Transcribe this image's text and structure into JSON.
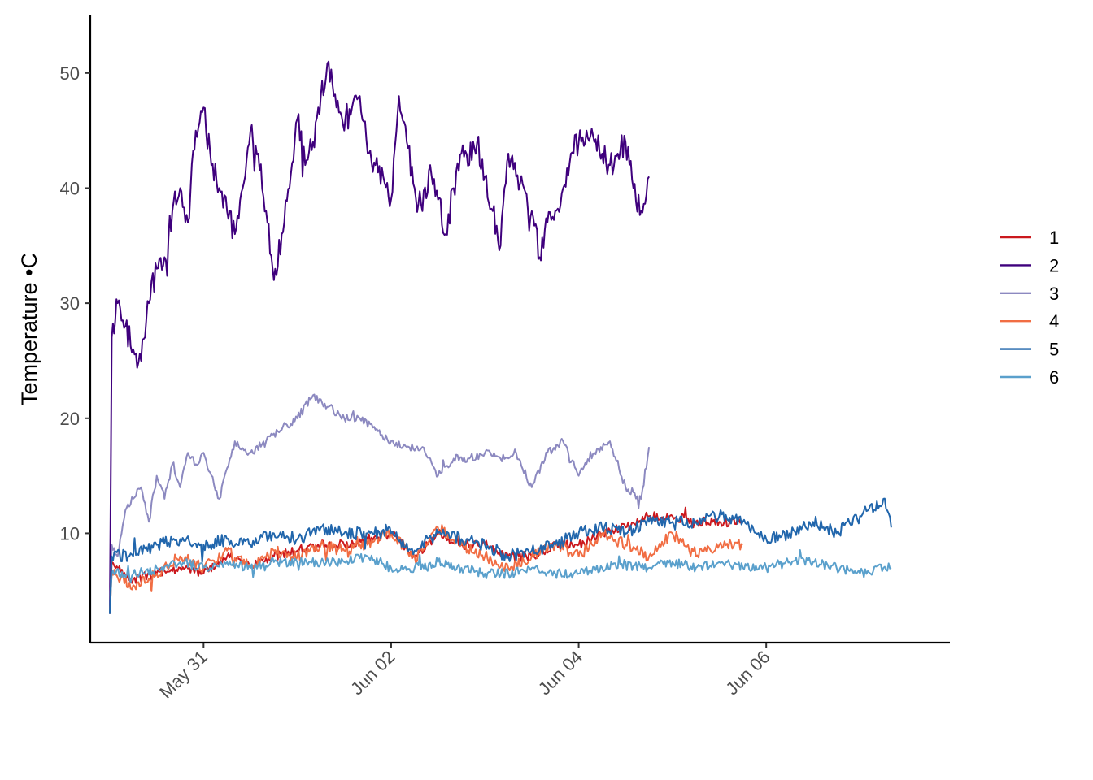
{
  "chart_data": {
    "type": "line",
    "title": "",
    "xlabel": "",
    "ylabel": "Temperature •C",
    "x_ticks": [
      {
        "label": "May 31",
        "value": "2023-05-31"
      },
      {
        "label": "Jun 02",
        "value": "2023-06-02"
      },
      {
        "label": "Jun 04",
        "value": "2023-06-04"
      },
      {
        "label": "Jun 06",
        "value": "2023-06-06"
      }
    ],
    "y_ticks": [
      10,
      20,
      30,
      40,
      50
    ],
    "xlim": [
      "2023-05-29T19:00",
      "2023-06-07T23:00"
    ],
    "ylim": [
      0.5,
      55
    ],
    "grid": false,
    "legend_position": "right",
    "series": [
      {
        "name": "1",
        "color": "#cb181d",
        "x": [
          "2023-05-30T00:00",
          "2023-05-30T00:30",
          "2023-05-30T06:00",
          "2023-05-30T12:00",
          "2023-05-30T18:00",
          "2023-05-31T00:00",
          "2023-05-31T06:00",
          "2023-05-31T12:00",
          "2023-05-31T18:00",
          "2023-06-01T00:00",
          "2023-06-01T06:00",
          "2023-06-01T12:00",
          "2023-06-01T18:00",
          "2023-06-02T00:00",
          "2023-06-02T06:00",
          "2023-06-02T12:00",
          "2023-06-02T18:00",
          "2023-06-03T00:00",
          "2023-06-03T06:00",
          "2023-06-03T12:00",
          "2023-06-03T18:00",
          "2023-06-04T00:00",
          "2023-06-04T06:00",
          "2023-06-04T12:00",
          "2023-06-04T18:00",
          "2023-06-05T00:00",
          "2023-06-05T06:00",
          "2023-06-05T12:00",
          "2023-06-05T18:00"
        ],
        "y": [
          3,
          7.5,
          6,
          6.5,
          7,
          6.5,
          8,
          7,
          8,
          8.5,
          9,
          9,
          9.5,
          10,
          8,
          10,
          9,
          9,
          8,
          8,
          9,
          9,
          10,
          10.5,
          11.5,
          11.5,
          11,
          11,
          11
        ]
      },
      {
        "name": "2",
        "color": "#3f007d",
        "x": [
          "2023-05-30T00:00",
          "2023-05-30T00:30",
          "2023-05-30T02:00",
          "2023-05-30T04:00",
          "2023-05-30T06:00",
          "2023-05-30T08:00",
          "2023-05-30T10:00",
          "2023-05-30T12:00",
          "2023-05-30T14:00",
          "2023-05-30T16:00",
          "2023-05-30T18:00",
          "2023-05-30T20:00",
          "2023-05-30T22:00",
          "2023-05-31T00:00",
          "2023-05-31T02:00",
          "2023-05-31T04:00",
          "2023-05-31T06:00",
          "2023-05-31T08:00",
          "2023-05-31T10:00",
          "2023-05-31T12:00",
          "2023-05-31T14:00",
          "2023-05-31T16:00",
          "2023-05-31T18:00",
          "2023-05-31T20:00",
          "2023-05-31T22:00",
          "2023-06-01T00:00",
          "2023-06-01T02:00",
          "2023-06-01T04:00",
          "2023-06-01T06:00",
          "2023-06-01T08:00",
          "2023-06-01T10:00",
          "2023-06-01T12:00",
          "2023-06-01T14:00",
          "2023-06-01T16:00",
          "2023-06-01T18:00",
          "2023-06-01T20:00",
          "2023-06-01T22:00",
          "2023-06-02T00:00",
          "2023-06-02T02:00",
          "2023-06-02T04:00",
          "2023-06-02T06:00",
          "2023-06-02T08:00",
          "2023-06-02T10:00",
          "2023-06-02T12:00",
          "2023-06-02T14:00",
          "2023-06-02T16:00",
          "2023-06-02T18:00",
          "2023-06-02T20:00",
          "2023-06-02T22:00",
          "2023-06-03T00:00",
          "2023-06-03T02:00",
          "2023-06-03T04:00",
          "2023-06-03T06:00",
          "2023-06-03T08:00",
          "2023-06-03T10:00",
          "2023-06-03T12:00",
          "2023-06-03T14:00",
          "2023-06-03T16:00",
          "2023-06-03T18:00",
          "2023-06-03T20:00",
          "2023-06-03T22:00",
          "2023-06-04T00:00",
          "2023-06-04T02:00",
          "2023-06-04T04:00",
          "2023-06-04T06:00",
          "2023-06-04T08:00",
          "2023-06-04T10:00",
          "2023-06-04T12:00",
          "2023-06-04T14:00",
          "2023-06-04T16:00",
          "2023-06-04T18:00"
        ],
        "y": [
          3,
          27,
          30,
          28,
          26,
          25,
          30,
          33,
          34,
          38,
          40,
          37,
          45,
          47,
          42,
          40,
          38,
          36,
          40,
          45,
          43,
          38,
          32,
          36,
          40,
          46,
          42,
          44,
          48,
          51,
          47,
          45,
          47,
          48,
          43,
          42,
          41,
          39,
          48,
          44,
          40,
          38,
          42,
          39,
          36,
          40,
          43,
          42,
          44,
          41,
          38,
          35,
          43,
          41,
          40,
          38,
          34,
          37,
          38,
          40,
          43,
          44,
          45,
          44,
          43,
          42,
          43,
          44,
          40,
          38,
          41
        ]
      },
      {
        "name": "3",
        "color": "#8c89c0",
        "x": [
          "2023-05-30T00:00",
          "2023-05-30T00:30",
          "2023-05-30T02:00",
          "2023-05-30T04:00",
          "2023-05-30T06:00",
          "2023-05-30T08:00",
          "2023-05-30T10:00",
          "2023-05-30T12:00",
          "2023-05-30T14:00",
          "2023-05-30T16:00",
          "2023-05-30T18:00",
          "2023-05-30T20:00",
          "2023-05-30T22:00",
          "2023-05-31T00:00",
          "2023-05-31T04:00",
          "2023-05-31T08:00",
          "2023-05-31T12:00",
          "2023-05-31T16:00",
          "2023-05-31T20:00",
          "2023-06-01T00:00",
          "2023-06-01T04:00",
          "2023-06-01T08:00",
          "2023-06-01T12:00",
          "2023-06-01T16:00",
          "2023-06-01T20:00",
          "2023-06-02T00:00",
          "2023-06-02T04:00",
          "2023-06-02T08:00",
          "2023-06-02T12:00",
          "2023-06-02T16:00",
          "2023-06-02T20:00",
          "2023-06-03T00:00",
          "2023-06-03T04:00",
          "2023-06-03T08:00",
          "2023-06-03T12:00",
          "2023-06-03T16:00",
          "2023-06-03T20:00",
          "2023-06-04T00:00",
          "2023-06-04T04:00",
          "2023-06-04T08:00",
          "2023-06-04T12:00",
          "2023-06-04T16:00",
          "2023-06-04T18:00"
        ],
        "y": [
          3,
          9,
          8,
          12,
          13,
          14,
          11,
          15,
          13,
          16,
          14,
          17,
          16,
          17,
          13,
          18,
          17,
          18,
          19,
          20,
          22,
          21,
          20,
          20,
          19,
          18,
          17.5,
          17.5,
          15,
          16.5,
          16.5,
          17,
          16.5,
          17,
          14,
          17,
          18,
          15,
          17,
          18,
          14,
          13,
          17.5
        ]
      },
      {
        "name": "4",
        "color": "#f16d43",
        "x": [
          "2023-05-30T00:00",
          "2023-05-30T00:30",
          "2023-05-30T06:00",
          "2023-05-30T12:00",
          "2023-05-30T18:00",
          "2023-05-31T00:00",
          "2023-05-31T06:00",
          "2023-05-31T12:00",
          "2023-05-31T18:00",
          "2023-06-01T00:00",
          "2023-06-01T06:00",
          "2023-06-01T12:00",
          "2023-06-01T18:00",
          "2023-06-02T00:00",
          "2023-06-02T06:00",
          "2023-06-02T12:00",
          "2023-06-02T18:00",
          "2023-06-03T00:00",
          "2023-06-03T06:00",
          "2023-06-03T12:00",
          "2023-06-03T18:00",
          "2023-06-04T00:00",
          "2023-06-04T06:00",
          "2023-06-04T12:00",
          "2023-06-04T18:00",
          "2023-06-05T00:00",
          "2023-06-05T06:00",
          "2023-06-05T12:00",
          "2023-06-05T18:00"
        ],
        "y": [
          3,
          6.5,
          5.5,
          6.5,
          8,
          7,
          8.5,
          7,
          8.5,
          8,
          9,
          8.5,
          9,
          10,
          8,
          10.5,
          9,
          8,
          7,
          8,
          9,
          8,
          10,
          9,
          8,
          10,
          8,
          9,
          9
        ]
      },
      {
        "name": "5",
        "color": "#2166ac",
        "x": [
          "2023-05-30T00:00",
          "2023-05-30T00:30",
          "2023-05-30T06:00",
          "2023-05-30T12:00",
          "2023-05-30T18:00",
          "2023-05-31T00:00",
          "2023-05-31T06:00",
          "2023-05-31T12:00",
          "2023-05-31T18:00",
          "2023-06-01T00:00",
          "2023-06-01T06:00",
          "2023-06-01T12:00",
          "2023-06-01T18:00",
          "2023-06-02T00:00",
          "2023-06-02T06:00",
          "2023-06-02T12:00",
          "2023-06-02T18:00",
          "2023-06-03T00:00",
          "2023-06-03T06:00",
          "2023-06-03T12:00",
          "2023-06-03T18:00",
          "2023-06-04T00:00",
          "2023-06-04T06:00",
          "2023-06-04T12:00",
          "2023-06-04T18:00",
          "2023-06-05T00:00",
          "2023-06-05T06:00",
          "2023-06-05T12:00",
          "2023-06-05T18:00",
          "2023-06-06T00:00",
          "2023-06-06T06:00",
          "2023-06-06T12:00",
          "2023-06-06T18:00",
          "2023-06-07T00:00",
          "2023-06-07T06:00",
          "2023-06-07T08:00"
        ],
        "y": [
          3,
          8,
          8,
          9,
          9.5,
          9,
          9.5,
          9,
          10,
          9.5,
          10.5,
          10,
          10,
          10,
          8.5,
          10,
          9.5,
          9,
          8,
          8.5,
          9,
          10,
          10.5,
          10,
          11,
          11,
          11,
          11.5,
          11,
          9.5,
          10,
          11,
          10,
          11.5,
          13,
          10.5
        ]
      },
      {
        "name": "6",
        "color": "#5aa0cc",
        "x": [
          "2023-05-30T00:00",
          "2023-05-30T00:30",
          "2023-05-30T06:00",
          "2023-05-30T12:00",
          "2023-05-30T18:00",
          "2023-05-31T00:00",
          "2023-05-31T06:00",
          "2023-05-31T12:00",
          "2023-05-31T18:00",
          "2023-06-01T00:00",
          "2023-06-01T06:00",
          "2023-06-01T12:00",
          "2023-06-01T18:00",
          "2023-06-02T00:00",
          "2023-06-02T06:00",
          "2023-06-02T12:00",
          "2023-06-02T18:00",
          "2023-06-03T00:00",
          "2023-06-03T06:00",
          "2023-06-03T12:00",
          "2023-06-03T18:00",
          "2023-06-04T00:00",
          "2023-06-04T06:00",
          "2023-06-04T12:00",
          "2023-06-04T18:00",
          "2023-06-05T00:00",
          "2023-06-05T06:00",
          "2023-06-05T12:00",
          "2023-06-05T18:00",
          "2023-06-06T00:00",
          "2023-06-06T06:00",
          "2023-06-06T12:00",
          "2023-06-06T18:00",
          "2023-06-07T00:00",
          "2023-06-07T06:00",
          "2023-06-07T08:00"
        ],
        "y": [
          3,
          6.5,
          6.5,
          7,
          7.5,
          7,
          7.5,
          7,
          7.5,
          7.5,
          7.5,
          7.5,
          8,
          7,
          7,
          7.5,
          7,
          6.5,
          6.5,
          7,
          6.5,
          6.5,
          7,
          7.5,
          7,
          7.5,
          7,
          7.5,
          7,
          7,
          7.5,
          7.5,
          7,
          6.5,
          7,
          7
        ]
      }
    ]
  }
}
